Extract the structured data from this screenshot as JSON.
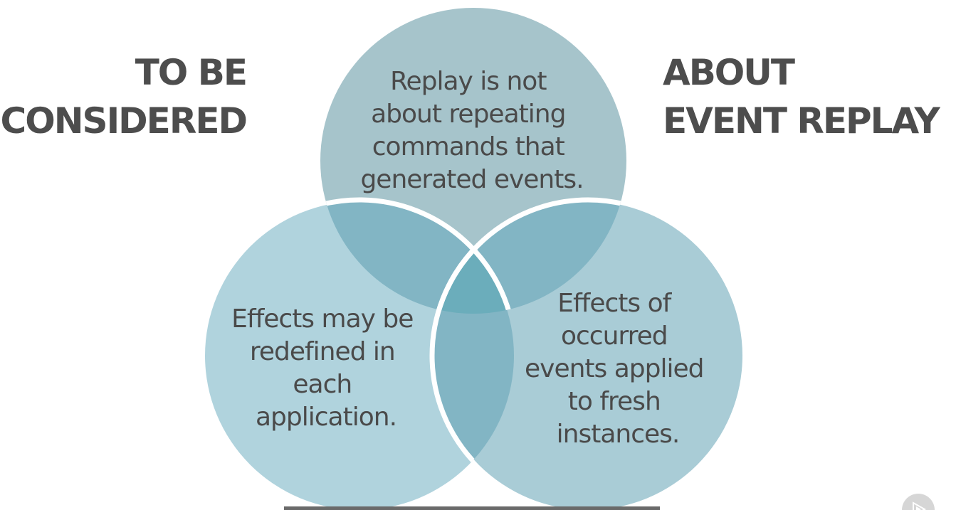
{
  "left_heading": {
    "line1": "TO BE",
    "line2": "CONSIDERED"
  },
  "right_heading": {
    "line1": "ABOUT",
    "line2": "EVENT REPLAY"
  },
  "circles": {
    "top": {
      "lines": [
        "Replay is not",
        "about repeating",
        "commands that",
        "generated events."
      ]
    },
    "left": {
      "lines": [
        "Effects may be",
        "redefined in",
        "each",
        "application."
      ]
    },
    "right": {
      "lines": [
        "Effects of",
        "occurred",
        "events applied",
        "to fresh",
        "instances."
      ]
    }
  },
  "colors": {
    "heading_text": "#4d4d4d",
    "circle_top": "#a6c4cb",
    "circle_left": "#b0d3dd",
    "circle_right": "#a9ccd6",
    "overlap_pair": "#82b5c4",
    "overlap_center": "#6badbb",
    "circle_text": "#4a4a4a"
  },
  "icons": {
    "player_logo": "play-logo-icon"
  }
}
